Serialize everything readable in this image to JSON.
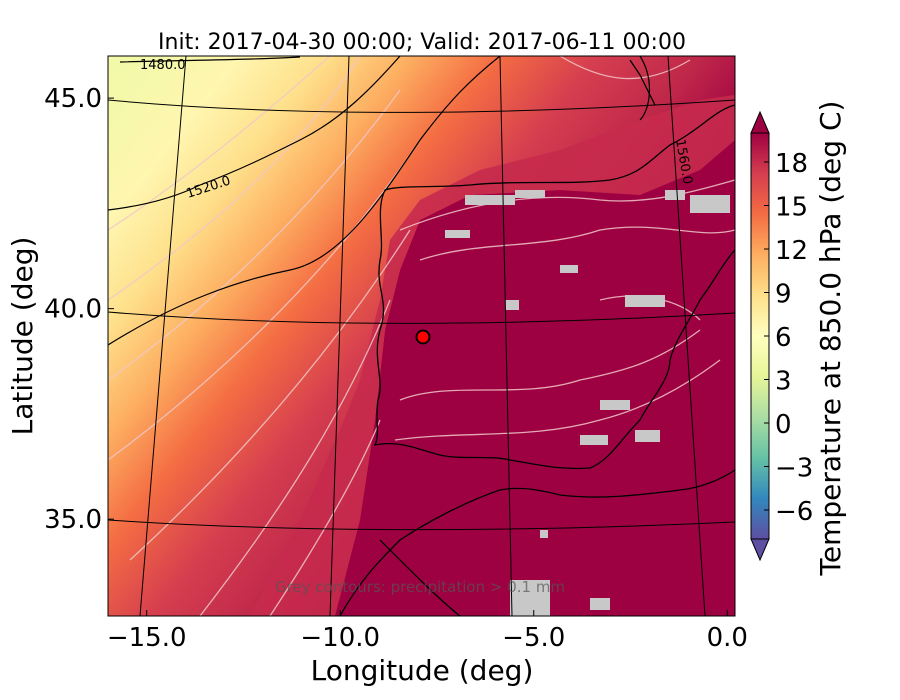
{
  "chart_data": {
    "type": "heatmap",
    "title": "Init: 2017-04-30 00:00; Valid: 2017-06-11 00:00",
    "xlabel": "Longitude (deg)",
    "ylabel": "Latitude (deg)",
    "xlim": [
      -16.0,
      0.2
    ],
    "ylim": [
      32.7,
      46.0
    ],
    "xticks": [
      -15.0,
      -10.0,
      -5.0,
      0.0
    ],
    "xtick_labels": [
      "−15.0",
      "−10.0",
      "−5.0",
      "0.0"
    ],
    "yticks": [
      35.0,
      40.0,
      45.0
    ],
    "ytick_labels": [
      "35.0",
      "40.0",
      "45.0"
    ],
    "colorbar": {
      "label": "Temperature at 850.0 hPa (deg C)",
      "min": -8,
      "max": 20,
      "extend": "both",
      "ticks": [
        -6,
        -3,
        0,
        3,
        6,
        9,
        12,
        15,
        18
      ],
      "tick_labels": [
        "−6",
        "−3",
        "0",
        "3",
        "6",
        "9",
        "12",
        "15",
        "18"
      ],
      "colors": [
        "#5e4fa2",
        "#3288bd",
        "#66c2a5",
        "#abdda4",
        "#e6f598",
        "#ffffbf",
        "#fee08b",
        "#fdae61",
        "#f46d43",
        "#d53e4f",
        "#9e0142"
      ]
    },
    "contour_labels": [
      "1480.0",
      "1520.0",
      "1560.0"
    ],
    "annotation": "Grey contours: precipitation > 0.1 mm",
    "marker": {
      "lon": -7.6,
      "lat": 39.3,
      "color": "#ff0000"
    },
    "grid": true
  }
}
